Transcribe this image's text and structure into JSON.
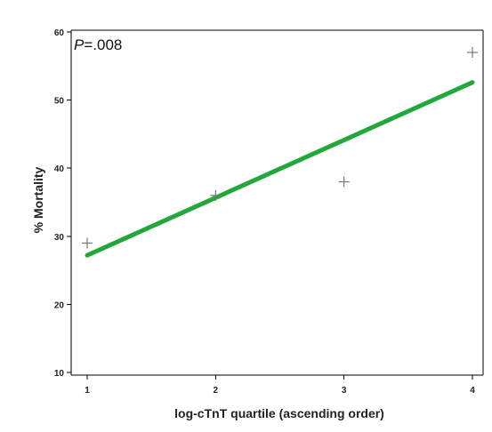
{
  "chart_data": {
    "type": "scatter",
    "title": "",
    "xlabel": "log-cTnT quartile (ascending order)",
    "ylabel": "% Mortality",
    "xlim": [
      1,
      4
    ],
    "ylim": [
      10,
      60
    ],
    "xticks": [
      1,
      2,
      3,
      4
    ],
    "yticks": [
      10,
      20,
      30,
      40,
      50,
      60
    ],
    "xtick_labels": [
      "1",
      "2",
      "3",
      "4"
    ],
    "ytick_labels": [
      "10",
      "20",
      "30",
      "40",
      "50",
      "60"
    ],
    "grid": false,
    "legend": "none",
    "series": [
      {
        "type": "scatter",
        "marker": "plus",
        "color": "#777777",
        "x": [
          1,
          2,
          3,
          4
        ],
        "y": [
          29,
          36,
          38,
          57
        ]
      },
      {
        "type": "line",
        "color": "#22a838",
        "x": [
          1,
          4
        ],
        "y": [
          27.2,
          52.6
        ]
      }
    ],
    "annotation": {
      "p_prefix": "P",
      "p_value": "=.008"
    }
  }
}
